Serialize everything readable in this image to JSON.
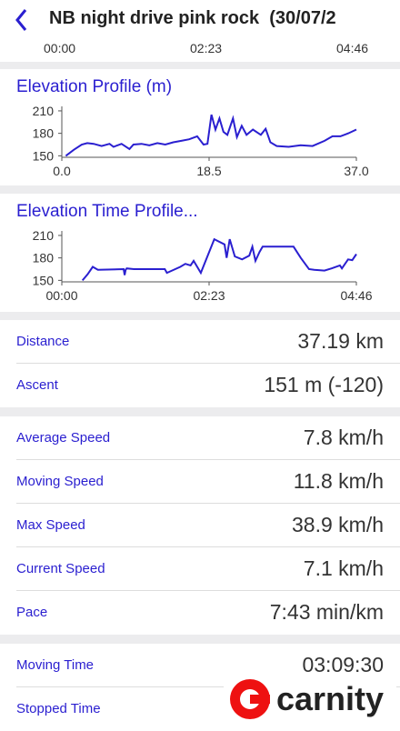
{
  "header": {
    "title": "NB night drive pink rock  (30/07/2"
  },
  "timeline_axis": [
    "00:00",
    "02:23",
    "04:46"
  ],
  "chart_data": [
    {
      "type": "line",
      "title": "Elevation Profile (m)",
      "color": "#2a1fd0",
      "x": [
        0.5,
        1.5,
        2.5,
        3.2,
        4,
        5,
        6,
        6.5,
        7.5,
        8.5,
        9,
        10,
        11,
        12,
        13,
        14,
        15,
        16,
        17,
        17.8,
        18.3,
        18.8,
        19.3,
        19.8,
        20.3,
        20.8,
        21.5,
        22,
        22.6,
        23.2,
        24,
        25,
        25.6,
        26.2,
        27,
        28.5,
        30,
        31.5,
        33,
        34,
        35,
        36,
        37
      ],
      "values": [
        150,
        158,
        165,
        167,
        166,
        163,
        166,
        162,
        166,
        159,
        165,
        166,
        164,
        167,
        165,
        168,
        170,
        172,
        176,
        165,
        166,
        205,
        185,
        200,
        182,
        178,
        200,
        175,
        190,
        178,
        185,
        178,
        186,
        168,
        163,
        162,
        164,
        163,
        170,
        176,
        176,
        180,
        185
      ],
      "xlim": [
        0,
        37
      ],
      "ylim": [
        148,
        216
      ],
      "xticks": [
        {
          "value": 0,
          "label": "0.0"
        },
        18.5,
        {
          "value": 37,
          "label": "37.0"
        }
      ],
      "yticks": [
        150,
        180,
        210
      ]
    },
    {
      "type": "line",
      "title": "Elevation Time Profile...",
      "color": "#2a1fd0",
      "x": [
        20,
        25,
        30,
        35,
        60,
        61,
        62,
        63,
        70,
        100,
        102,
        115,
        120,
        125,
        128,
        135,
        148,
        158,
        160,
        163,
        168,
        175,
        182,
        185,
        188,
        192,
        195,
        225,
        232,
        240,
        245,
        255,
        262,
        270,
        272,
        278,
        282,
        286
      ],
      "values": [
        150,
        158,
        168,
        164,
        165,
        157,
        164,
        166,
        165,
        165,
        160,
        168,
        172,
        170,
        176,
        160,
        205,
        198,
        180,
        205,
        182,
        178,
        183,
        195,
        176,
        188,
        195,
        195,
        180,
        165,
        164,
        163,
        166,
        170,
        166,
        178,
        177,
        185
      ],
      "xlim": [
        0,
        286
      ],
      "ylim": [
        148,
        216
      ],
      "xticks": [
        {
          "value": 0,
          "label": "00:00"
        },
        {
          "value": 143,
          "label": "02:23"
        },
        {
          "value": 286,
          "label": "04:46"
        }
      ],
      "yticks": [
        150,
        180,
        210
      ]
    }
  ],
  "stats": [
    [
      {
        "label": "Distance",
        "value": "37.19 km"
      },
      {
        "label": "Ascent",
        "value": "151 m (-120)"
      }
    ],
    [
      {
        "label": "Average Speed",
        "value": "7.8 km/h"
      },
      {
        "label": "Moving Speed",
        "value": "11.8 km/h"
      },
      {
        "label": "Max Speed",
        "value": "38.9 km/h"
      },
      {
        "label": "Current Speed",
        "value": "7.1 km/h"
      },
      {
        "label": "Pace",
        "value": "7:43 min/km"
      }
    ],
    [
      {
        "label": "Moving Time",
        "value": "03:09:30"
      },
      {
        "label": "Stopped Time"
      }
    ]
  ],
  "watermark": "carnity"
}
